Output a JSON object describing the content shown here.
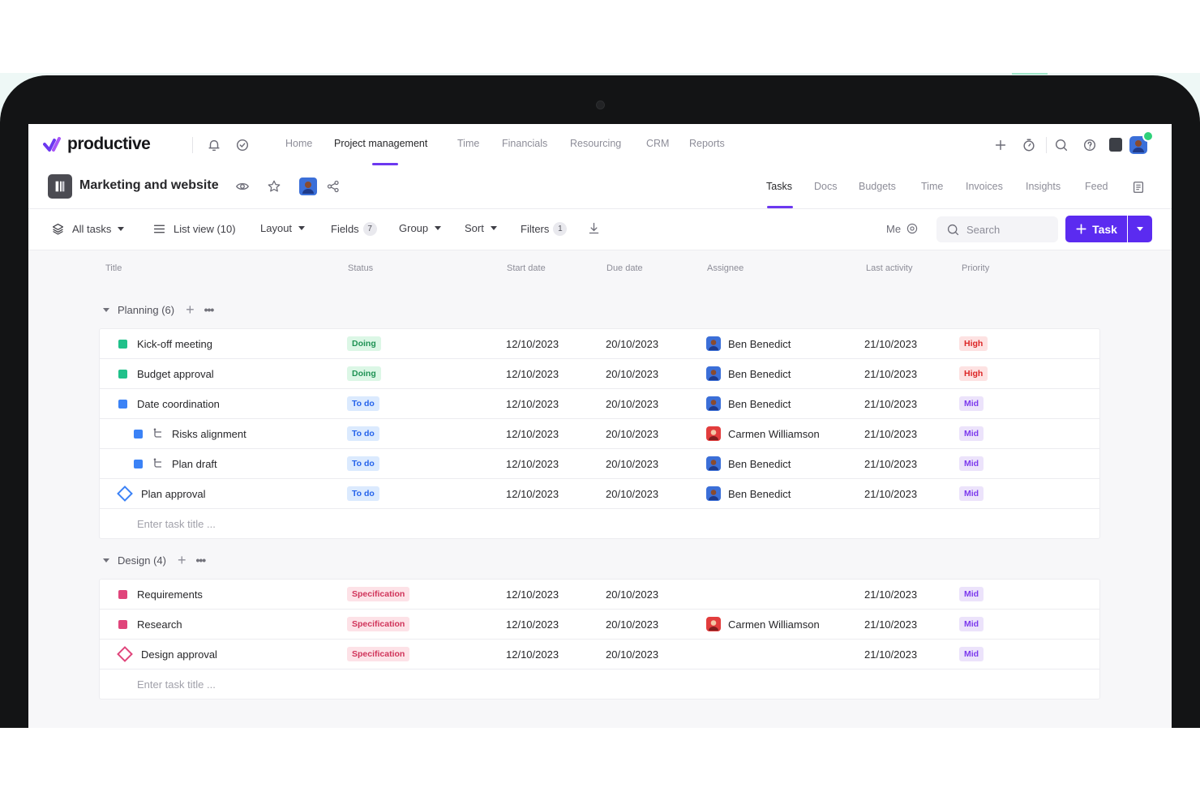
{
  "app": {
    "brand": "productive",
    "nav": [
      "Home",
      "Project management",
      "Time",
      "Financials",
      "Resourcing",
      "CRM",
      "Reports"
    ],
    "active_nav": "Project management"
  },
  "project": {
    "title": "Marketing and website",
    "tabs": [
      "Tasks",
      "Docs",
      "Budgets",
      "Time",
      "Invoices",
      "Insights",
      "Feed"
    ],
    "active_tab": "Tasks"
  },
  "toolbar": {
    "all_tasks": "All tasks",
    "list_view": "List view (10)",
    "layout": "Layout",
    "fields": "Fields",
    "fields_count": "7",
    "group": "Group",
    "sort": "Sort",
    "filters": "Filters",
    "filters_count": "1",
    "me": "Me",
    "search_placeholder": "Search",
    "task_button": "Task"
  },
  "columns": {
    "title": "Title",
    "status": "Status",
    "start": "Start date",
    "due": "Due date",
    "assignee": "Assignee",
    "last": "Last activity",
    "priority": "Priority"
  },
  "groups": [
    {
      "name": "Planning (6)",
      "enter_placeholder": "Enter task title ...",
      "rows": [
        {
          "title": "Kick-off meeting",
          "status": "Doing",
          "start": "12/10/2023",
          "due": "20/10/2023",
          "assignee": "Ben Benedict",
          "last": "21/10/2023",
          "priority": "High"
        },
        {
          "title": "Budget approval",
          "status": "Doing",
          "start": "12/10/2023",
          "due": "20/10/2023",
          "assignee": "Ben Benedict",
          "last": "21/10/2023",
          "priority": "High"
        },
        {
          "title": "Date coordination",
          "status": "To do",
          "start": "12/10/2023",
          "due": "20/10/2023",
          "assignee": "Ben Benedict",
          "last": "21/10/2023",
          "priority": "Mid"
        },
        {
          "title": "Risks alignment",
          "status": "To do",
          "start": "12/10/2023",
          "due": "20/10/2023",
          "assignee": "Carmen Williamson",
          "last": "21/10/2023",
          "priority": "Mid"
        },
        {
          "title": "Plan draft",
          "status": "To do",
          "start": "12/10/2023",
          "due": "20/10/2023",
          "assignee": "Ben Benedict",
          "last": "21/10/2023",
          "priority": "Mid"
        },
        {
          "title": "Plan approval",
          "status": "To do",
          "start": "12/10/2023",
          "due": "20/10/2023",
          "assignee": "Ben Benedict",
          "last": "21/10/2023",
          "priority": "Mid"
        }
      ]
    },
    {
      "name": "Design (4)",
      "enter_placeholder": "Enter task title ...",
      "rows": [
        {
          "title": "Requirements",
          "status": "Specification",
          "start": "12/10/2023",
          "due": "20/10/2023",
          "assignee": "",
          "last": "21/10/2023",
          "priority": "Mid"
        },
        {
          "title": "Research",
          "status": "Specification",
          "start": "12/10/2023",
          "due": "20/10/2023",
          "assignee": "Carmen Williamson",
          "last": "21/10/2023",
          "priority": "Mid"
        },
        {
          "title": "Design approval",
          "status": "Specification",
          "start": "12/10/2023",
          "due": "20/10/2023",
          "assignee": "",
          "last": "21/10/2023",
          "priority": "Mid"
        }
      ]
    }
  ],
  "colors": {
    "accent": "#5b2bf0",
    "doing_bg": "#dcf7e6",
    "doing_fg": "#1f9254",
    "todo_bg": "#dbeafe",
    "todo_fg": "#2563eb",
    "spec_bg": "#fde2e7",
    "spec_fg": "#d0345a",
    "high_bg": "#fde2e2",
    "high_fg": "#dc2626",
    "mid_bg": "#ece3fb",
    "mid_fg": "#7c3aed",
    "planning_green": "#20c18a",
    "planning_blue": "#3b82f6",
    "design_pink": "#e0457b"
  }
}
